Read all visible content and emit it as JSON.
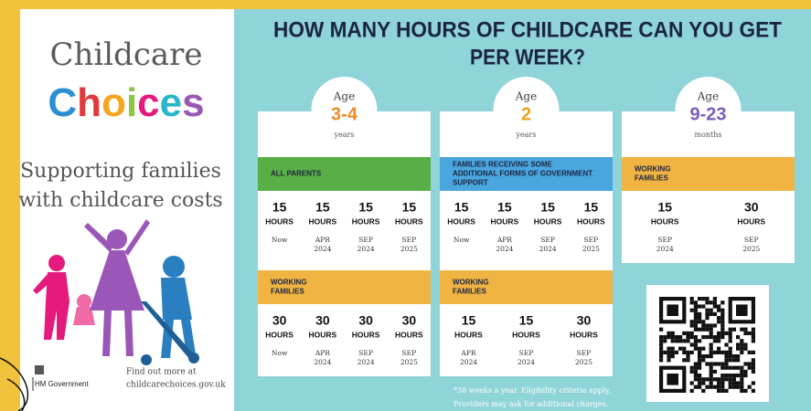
{
  "brand": {
    "name_line1": "Childcare",
    "name_line2": "Choices",
    "tagline": [
      "Supporting families",
      "with childcare costs"
    ],
    "government": "HM Government",
    "more_info": [
      "Find out more at",
      "childcarechoices.gov.uk"
    ]
  },
  "heading": [
    "HOW MANY HOURS OF CHILDCARE CAN YOU GET",
    "PER WEEK?"
  ],
  "cards": [
    {
      "age_label": "Age",
      "age": "3-4",
      "age_unit": "years",
      "groups": [
        {
          "label": [
            "ALL PARENTS"
          ],
          "entries": [
            {
              "hours": 15,
              "unit": "HOURS",
              "when": [
                "Now"
              ]
            },
            {
              "hours": 15,
              "unit": "HOURS",
              "when": [
                "APR",
                "2024"
              ]
            },
            {
              "hours": 15,
              "unit": "HOURS",
              "when": [
                "SEP",
                "2024"
              ]
            },
            {
              "hours": 15,
              "unit": "HOURS",
              "when": [
                "SEP",
                "2025"
              ]
            }
          ]
        },
        {
          "label": [
            "WORKING",
            "FAMILIES"
          ],
          "entries": [
            {
              "hours": 30,
              "unit": "HOURS",
              "when": [
                "Now"
              ]
            },
            {
              "hours": 30,
              "unit": "HOURS",
              "when": [
                "APR",
                "2024"
              ]
            },
            {
              "hours": 30,
              "unit": "HOURS",
              "when": [
                "SEP",
                "2024"
              ]
            },
            {
              "hours": 30,
              "unit": "HOURS",
              "when": [
                "SEP",
                "2025"
              ]
            }
          ]
        }
      ]
    },
    {
      "age_label": "Age",
      "age": "2",
      "age_unit": "years",
      "groups": [
        {
          "label": [
            "FAMILIES RECEIVING SOME",
            "ADDITIONAL FORMS OF GOVERNMENT",
            "SUPPORT"
          ],
          "entries": [
            {
              "hours": 15,
              "unit": "HOURS",
              "when": [
                "Now"
              ]
            },
            {
              "hours": 15,
              "unit": "HOURS",
              "when": [
                "APR",
                "2024"
              ]
            },
            {
              "hours": 15,
              "unit": "HOURS",
              "when": [
                "SEP",
                "2024"
              ]
            },
            {
              "hours": 15,
              "unit": "HOURS",
              "when": [
                "SEP",
                "2025"
              ]
            }
          ]
        },
        {
          "label": [
            "WORKING",
            "FAMILIES"
          ],
          "entries": [
            {
              "hours": 15,
              "unit": "HOURS",
              "when": [
                "APR",
                "2024"
              ]
            },
            {
              "hours": 15,
              "unit": "HOURS",
              "when": [
                "SEP",
                "2024"
              ]
            },
            {
              "hours": 30,
              "unit": "HOURS",
              "when": [
                "SEP",
                "2025"
              ]
            }
          ]
        }
      ]
    },
    {
      "age_label": "Age",
      "age": "9-23",
      "age_unit": "months",
      "groups": [
        {
          "label": [
            "WORKING",
            "FAMILIES"
          ],
          "entries": [
            {
              "hours": 15,
              "unit": "HOURS",
              "when": [
                "SEP",
                "2024"
              ]
            },
            {
              "hours": 30,
              "unit": "HOURS",
              "when": [
                "SEP",
                "2025"
              ]
            }
          ]
        }
      ]
    }
  ],
  "footnote": [
    "*38 weeks a year. Eligibility criteria apply.",
    "Providers may ask for additional charges."
  ]
}
